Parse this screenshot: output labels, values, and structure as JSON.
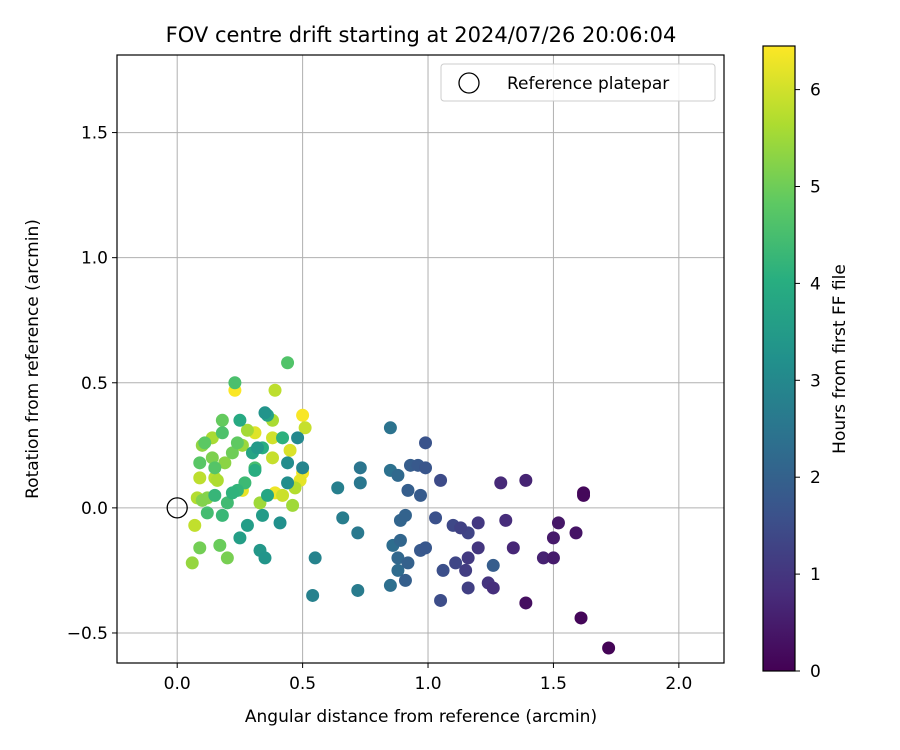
{
  "chart_data": {
    "type": "scatter",
    "title": "FOV centre drift starting at 2024/07/26 20:06:04",
    "xlabel": "Angular distance from reference (arcmin)",
    "ylabel": "Rotation from reference (arcmin)",
    "xlim": [
      -0.24,
      2.18
    ],
    "ylim": [
      -0.62,
      1.81
    ],
    "xticks": [
      0.0,
      0.5,
      1.0,
      1.5,
      2.0
    ],
    "xtick_labels": [
      "0.0",
      "0.5",
      "1.0",
      "1.5",
      "2.0"
    ],
    "yticks": [
      -0.5,
      0.0,
      0.5,
      1.0,
      1.5
    ],
    "ytick_labels": [
      "−0.5",
      "0.0",
      "0.5",
      "1.0",
      "1.5"
    ],
    "grid": true,
    "legend": {
      "placement": "top-right",
      "entries": [
        "Reference platepar"
      ]
    },
    "reference": {
      "x": 0.0,
      "y": 0.0
    },
    "colorbar": {
      "label": "Hours from first FF file",
      "range": [
        0,
        6.45
      ],
      "ticks": [
        0,
        1,
        2,
        3,
        4,
        5,
        6
      ],
      "colormap": "viridis"
    },
    "points": [
      [
        1.72,
        -0.56,
        0.05
      ],
      [
        1.61,
        -0.44,
        0.1
      ],
      [
        1.62,
        0.06,
        0.12
      ],
      [
        1.62,
        0.05,
        0.15
      ],
      [
        1.59,
        -0.1,
        0.35
      ],
      [
        1.52,
        -0.06,
        0.4
      ],
      [
        1.5,
        -0.12,
        0.45
      ],
      [
        1.5,
        -0.2,
        0.5
      ],
      [
        1.46,
        -0.2,
        0.6
      ],
      [
        1.39,
        0.11,
        0.65
      ],
      [
        1.34,
        -0.16,
        0.7
      ],
      [
        1.29,
        0.1,
        0.75
      ],
      [
        1.31,
        -0.05,
        0.8
      ],
      [
        1.26,
        -0.32,
        0.85
      ],
      [
        1.24,
        -0.3,
        0.95
      ],
      [
        1.2,
        -0.16,
        1.0
      ],
      [
        1.2,
        -0.06,
        1.05
      ],
      [
        1.16,
        -0.2,
        1.1
      ],
      [
        1.15,
        -0.25,
        1.15
      ],
      [
        1.16,
        -0.32,
        1.2
      ],
      [
        1.13,
        -0.08,
        1.25
      ],
      [
        1.16,
        -0.1,
        1.3
      ],
      [
        1.11,
        -0.22,
        1.35
      ],
      [
        1.1,
        -0.07,
        1.4
      ],
      [
        1.05,
        0.11,
        1.45
      ],
      [
        1.05,
        -0.37,
        1.5
      ],
      [
        1.06,
        -0.25,
        1.55
      ],
      [
        1.03,
        -0.04,
        1.6
      ],
      [
        0.99,
        0.26,
        1.65
      ],
      [
        0.99,
        0.16,
        1.7
      ],
      [
        0.99,
        -0.16,
        1.75
      ],
      [
        0.97,
        -0.17,
        1.78
      ],
      [
        0.96,
        0.17,
        1.8
      ],
      [
        0.97,
        0.05,
        1.85
      ],
      [
        0.93,
        0.17,
        1.9
      ],
      [
        0.92,
        0.07,
        1.92
      ],
      [
        0.91,
        -0.29,
        1.95
      ],
      [
        0.92,
        -0.22,
        2.0
      ],
      [
        0.91,
        -0.03,
        2.05
      ],
      [
        0.89,
        -0.05,
        2.1
      ],
      [
        0.89,
        -0.13,
        2.12
      ],
      [
        0.88,
        -0.2,
        2.15
      ],
      [
        0.88,
        0.13,
        2.2
      ],
      [
        0.88,
        -0.25,
        2.25
      ],
      [
        0.86,
        -0.15,
        2.3
      ],
      [
        0.85,
        -0.31,
        2.35
      ],
      [
        0.85,
        0.15,
        2.4
      ],
      [
        0.85,
        0.32,
        2.45
      ],
      [
        1.26,
        -0.23,
        1.9
      ],
      [
        1.39,
        -0.38,
        0.25
      ],
      [
        0.73,
        0.16,
        2.5
      ],
      [
        0.73,
        0.1,
        2.55
      ],
      [
        0.72,
        -0.1,
        2.6
      ],
      [
        0.72,
        -0.33,
        2.65
      ],
      [
        0.66,
        -0.04,
        2.7
      ],
      [
        0.64,
        0.08,
        2.75
      ],
      [
        0.54,
        -0.35,
        2.8
      ],
      [
        0.55,
        -0.2,
        2.85
      ],
      [
        0.5,
        0.16,
        2.9
      ],
      [
        0.48,
        0.28,
        3.0
      ],
      [
        0.44,
        0.18,
        3.1
      ],
      [
        0.44,
        0.1,
        3.15
      ],
      [
        0.41,
        -0.06,
        3.2
      ],
      [
        0.35,
        0.38,
        3.3
      ],
      [
        0.35,
        -0.2,
        3.35
      ],
      [
        0.33,
        -0.17,
        3.4
      ],
      [
        0.32,
        0.24,
        3.45
      ],
      [
        0.34,
        -0.03,
        3.5
      ],
      [
        0.28,
        -0.07,
        3.55
      ],
      [
        0.25,
        -0.12,
        3.6
      ],
      [
        0.36,
        0.37,
        3.7
      ],
      [
        0.3,
        0.22,
        3.75
      ],
      [
        0.36,
        0.05,
        3.8
      ],
      [
        0.25,
        0.35,
        3.9
      ],
      [
        0.31,
        0.15,
        4.0
      ],
      [
        0.34,
        0.24,
        4.05
      ],
      [
        0.42,
        0.28,
        4.1
      ],
      [
        0.22,
        0.06,
        4.15
      ],
      [
        0.24,
        0.07,
        4.2
      ],
      [
        0.15,
        0.05,
        4.25
      ],
      [
        0.18,
        -0.03,
        4.3
      ],
      [
        0.27,
        0.1,
        4.35
      ],
      [
        0.2,
        0.02,
        4.4
      ],
      [
        0.12,
        -0.02,
        4.45
      ],
      [
        0.31,
        0.16,
        4.5
      ],
      [
        0.23,
        0.5,
        4.55
      ],
      [
        0.18,
        0.3,
        4.6
      ],
      [
        0.44,
        0.58,
        4.65
      ],
      [
        0.15,
        0.16,
        4.7
      ],
      [
        0.09,
        0.18,
        4.75
      ],
      [
        0.11,
        0.26,
        4.8
      ],
      [
        0.24,
        0.26,
        4.85
      ],
      [
        0.18,
        0.35,
        4.9
      ],
      [
        0.17,
        -0.15,
        4.95
      ],
      [
        0.22,
        0.22,
        5.0
      ],
      [
        0.09,
        -0.16,
        5.05
      ],
      [
        0.2,
        -0.2,
        5.1
      ],
      [
        0.14,
        0.2,
        5.15
      ],
      [
        0.1,
        0.03,
        5.2
      ],
      [
        0.12,
        0.04,
        5.25
      ],
      [
        0.19,
        0.18,
        5.3
      ],
      [
        0.1,
        0.25,
        5.35
      ],
      [
        0.06,
        -0.22,
        5.4
      ],
      [
        0.26,
        0.25,
        5.45
      ],
      [
        0.33,
        0.02,
        5.5
      ],
      [
        0.28,
        0.31,
        5.55
      ],
      [
        0.14,
        0.28,
        5.6
      ],
      [
        0.16,
        0.11,
        5.65
      ],
      [
        0.08,
        0.04,
        5.7
      ],
      [
        0.15,
        0.12,
        5.75
      ],
      [
        0.09,
        0.12,
        5.8
      ],
      [
        0.07,
        -0.07,
        5.85
      ],
      [
        0.38,
        0.2,
        5.9
      ],
      [
        0.42,
        0.05,
        5.95
      ],
      [
        0.38,
        0.28,
        6.0
      ],
      [
        0.46,
        0.01,
        5.5
      ],
      [
        0.47,
        0.08,
        5.7
      ],
      [
        0.45,
        0.23,
        6.1
      ],
      [
        0.39,
        0.47,
        5.8
      ],
      [
        0.31,
        0.3,
        6.15
      ],
      [
        0.49,
        0.11,
        6.2
      ],
      [
        0.26,
        0.07,
        6.25
      ],
      [
        0.39,
        0.06,
        6.3
      ],
      [
        0.5,
        0.14,
        6.35
      ],
      [
        0.51,
        0.32,
        5.9
      ],
      [
        0.5,
        0.37,
        6.4
      ],
      [
        0.23,
        0.47,
        6.42
      ],
      [
        0.38,
        0.35,
        5.6
      ]
    ]
  }
}
